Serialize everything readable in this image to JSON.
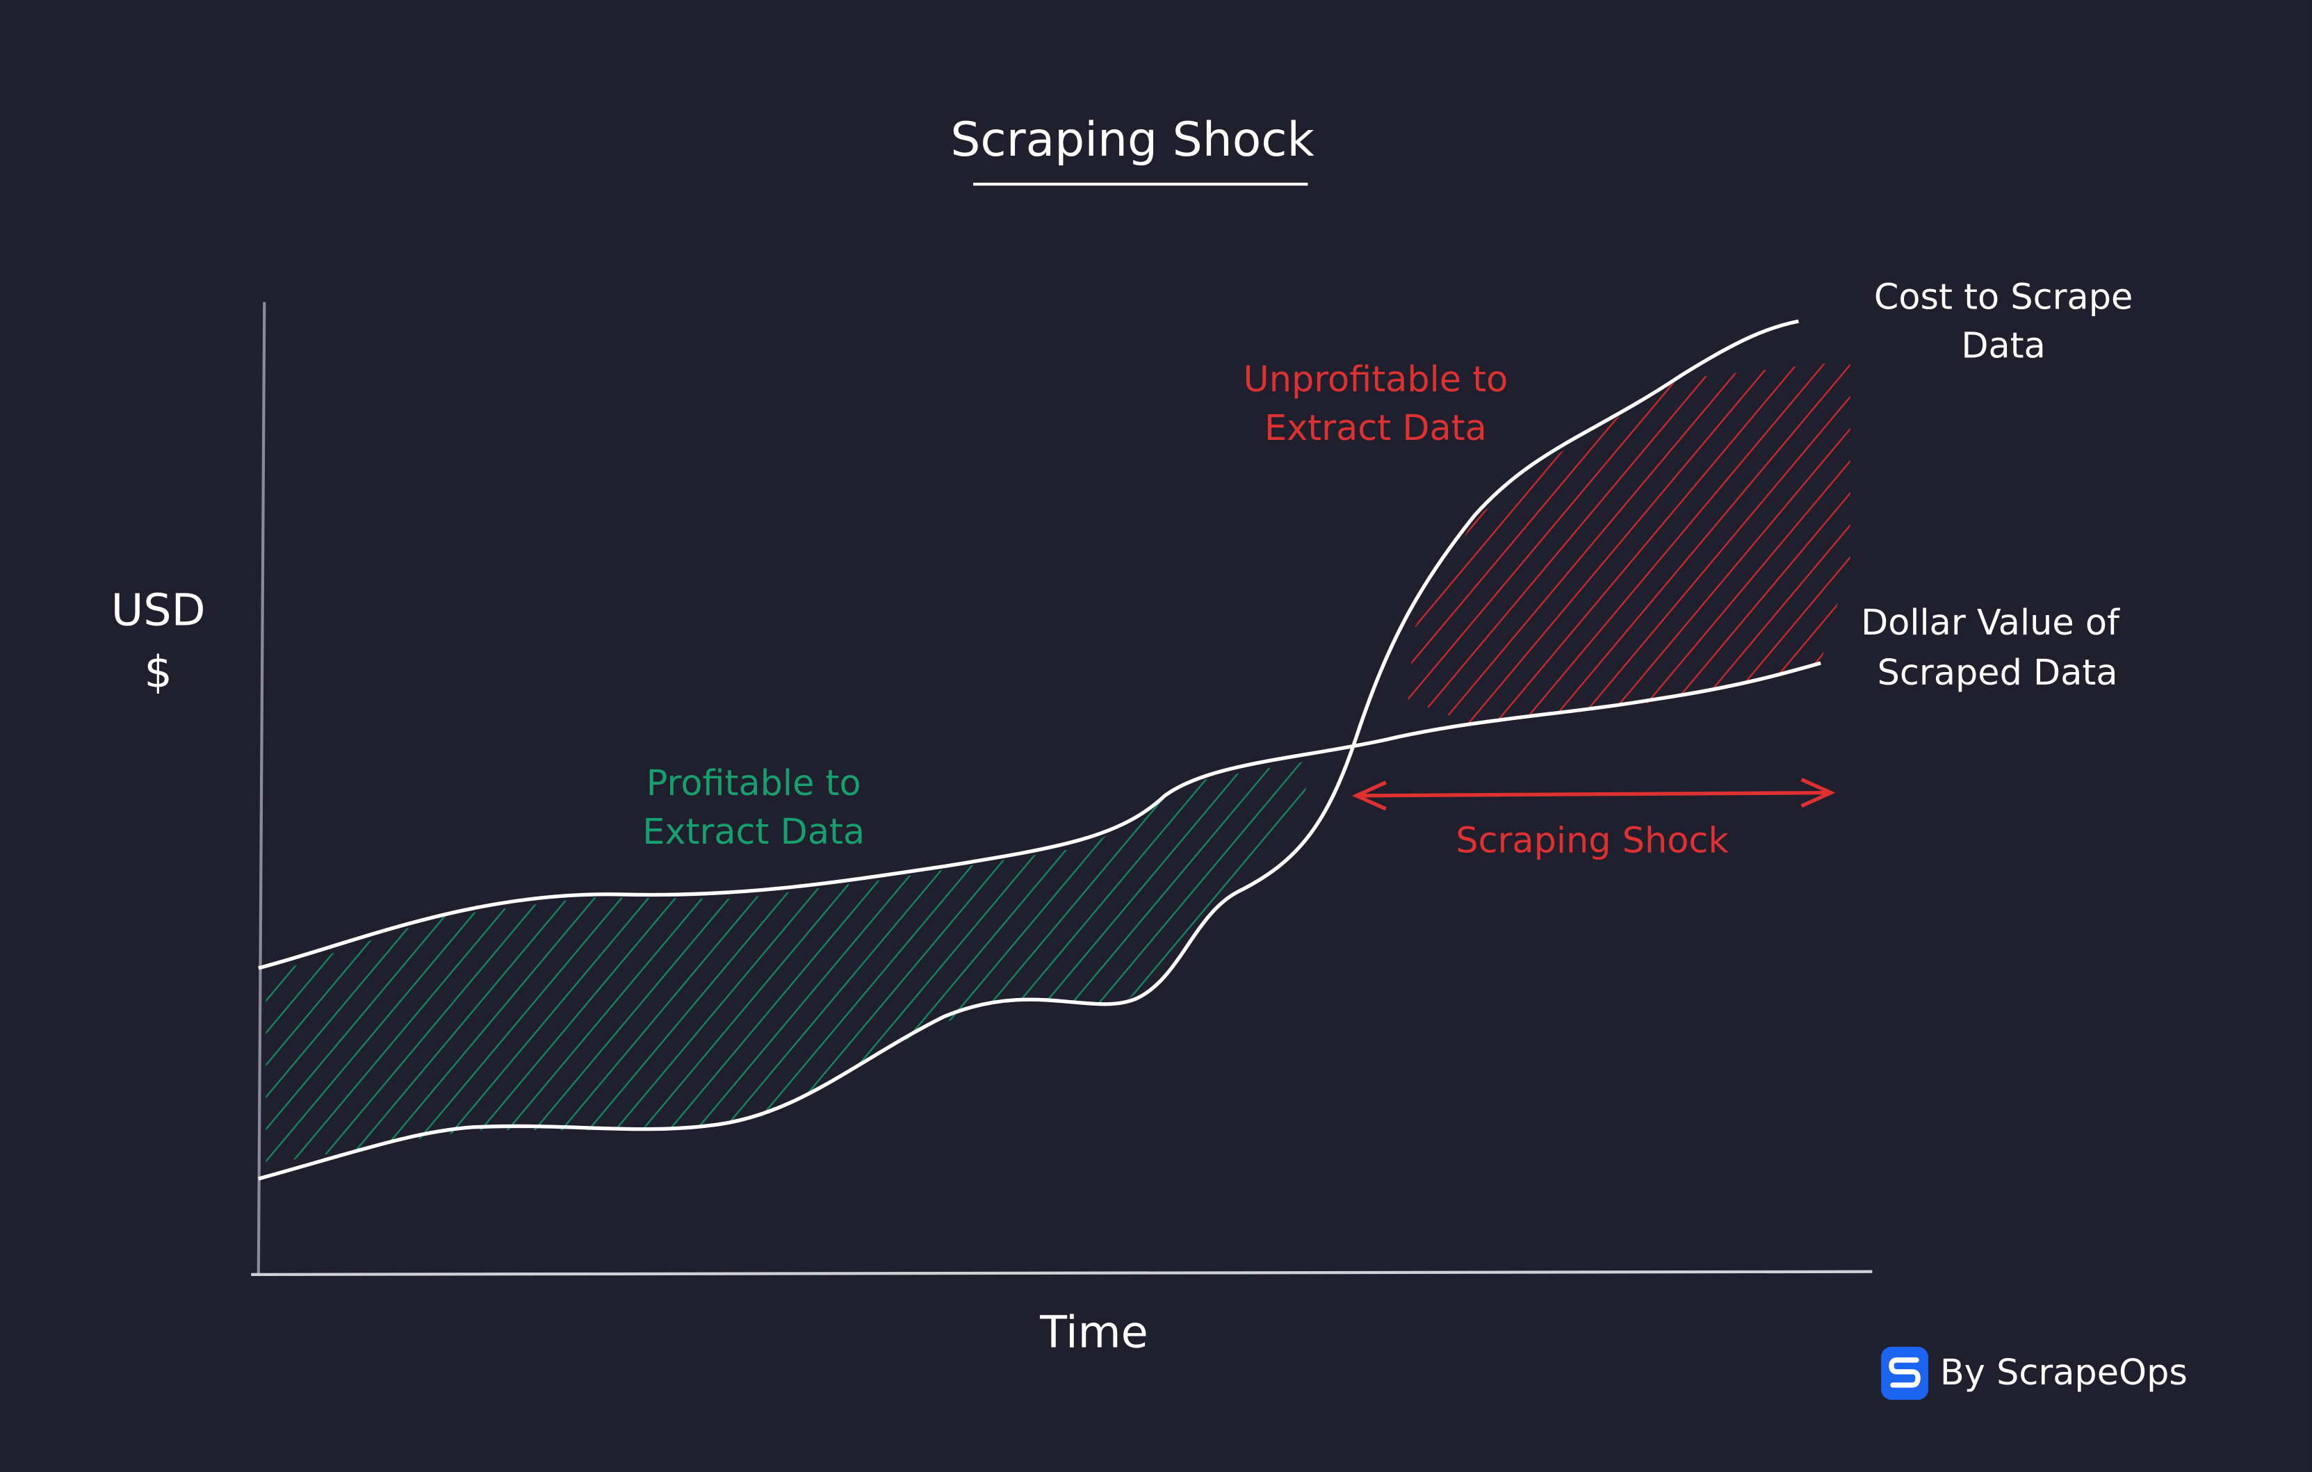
{
  "title": "Scraping Shock",
  "y_axis_label": [
    "USD",
    "$"
  ],
  "x_axis_label": "Time",
  "cost_label": [
    "Cost to Scrape",
    "Data"
  ],
  "value_label": [
    "Dollar Value of",
    "Scraped Data"
  ],
  "unprofitable_label": [
    "Unprofitable to",
    "Extract Data"
  ],
  "profitable_label": [
    "Profitable to",
    "Extract Data"
  ],
  "shock_label": "Scraping Shock",
  "brand": "By ScrapeOps"
}
